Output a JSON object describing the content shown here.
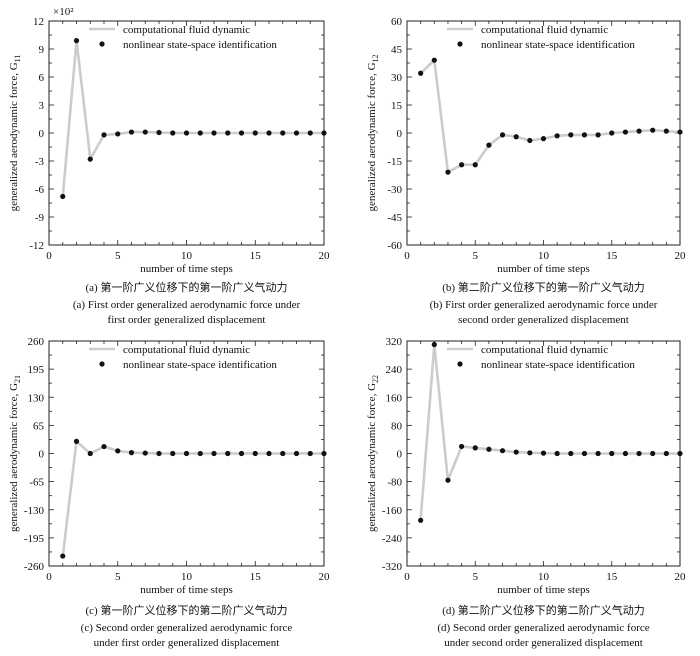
{
  "legend": {
    "cfd": "computational fluid dynamic",
    "nssi": "nonlinear state-space identification"
  },
  "colors": {
    "cfd_line": "#cccccc",
    "nssi_marker": "#111111"
  },
  "chart_data": [
    {
      "id": "G11",
      "type": "line",
      "xlabel": "number of time steps",
      "ylabel": "generalized aerodynamic force, G",
      "ylabel_sub": "11",
      "scale_note": "×10²",
      "xlim": [
        0,
        20
      ],
      "ylim": [
        -12,
        12
      ],
      "xticks": [
        0,
        5,
        10,
        15,
        20
      ],
      "yticks": [
        12,
        9,
        6,
        3,
        0,
        -3,
        -6,
        -9,
        -12
      ],
      "legend_position": "top",
      "x": [
        1,
        2,
        3,
        4,
        5,
        6,
        7,
        8,
        9,
        10,
        11,
        12,
        13,
        14,
        15,
        16,
        17,
        18,
        19,
        20
      ],
      "series": [
        {
          "name": "computational fluid dynamic",
          "style": "line",
          "values": [
            -6.8,
            9.9,
            -2.8,
            -0.2,
            -0.1,
            0.1,
            0.1,
            0.05,
            0,
            0,
            0,
            0,
            0,
            0,
            0,
            0,
            0,
            0,
            0,
            0
          ]
        },
        {
          "name": "nonlinear state-space identification",
          "style": "markers",
          "values": [
            -6.8,
            9.9,
            -2.8,
            -0.2,
            -0.1,
            0.1,
            0.1,
            0.05,
            0,
            0,
            0,
            0,
            0,
            0,
            0,
            0,
            0,
            0,
            0,
            0
          ]
        }
      ],
      "caption_cn": "(a) 第一阶广义位移下的第一阶广义气动力",
      "caption_en1": "(a) First order generalized aerodynamic force under",
      "caption_en2": "first order generalized displacement"
    },
    {
      "id": "G12",
      "type": "line",
      "xlabel": "number of time steps",
      "ylabel": "generalized aerodynamic force, G",
      "ylabel_sub": "12",
      "scale_note": "",
      "xlim": [
        0,
        20
      ],
      "ylim": [
        -60,
        60
      ],
      "xticks": [
        0,
        5,
        10,
        15,
        20
      ],
      "yticks": [
        60,
        45,
        30,
        15,
        0,
        -15,
        -30,
        -45,
        -60
      ],
      "legend_position": "top",
      "x": [
        1,
        2,
        3,
        4,
        5,
        6,
        7,
        8,
        9,
        10,
        11,
        12,
        13,
        14,
        15,
        16,
        17,
        18,
        19,
        20
      ],
      "series": [
        {
          "name": "computational fluid dynamic",
          "style": "line",
          "values": [
            32,
            39,
            -21,
            -17,
            -17,
            -6.5,
            -1,
            -2,
            -4,
            -3,
            -1.5,
            -1,
            -1,
            -1,
            0,
            0.5,
            1,
            1.5,
            1,
            0.5
          ]
        },
        {
          "name": "nonlinear state-space identification",
          "style": "markers",
          "values": [
            32,
            39,
            -21,
            -17,
            -17,
            -6.5,
            -1,
            -2,
            -4,
            -3,
            -1.5,
            -1,
            -1,
            -1,
            0,
            0.5,
            1,
            1.5,
            1,
            0.5
          ]
        }
      ],
      "caption_cn": "(b) 第二阶广义位移下的第一阶广义气动力",
      "caption_en1": "(b) First order generalized aerodynamic force under",
      "caption_en2": "second order generalized displacement"
    },
    {
      "id": "G21",
      "type": "line",
      "xlabel": "number of time steps",
      "ylabel": "generalized aerodynamic force, G",
      "ylabel_sub": "21",
      "scale_note": "",
      "xlim": [
        0,
        20
      ],
      "ylim": [
        -260,
        260
      ],
      "xticks": [
        0,
        5,
        10,
        15,
        20
      ],
      "yticks": [
        260,
        195,
        130,
        65,
        0,
        -65,
        -130,
        -195,
        -260
      ],
      "legend_position": "top",
      "x": [
        1,
        2,
        3,
        4,
        5,
        6,
        7,
        8,
        9,
        10,
        11,
        12,
        13,
        14,
        15,
        16,
        17,
        18,
        19,
        20
      ],
      "series": [
        {
          "name": "computational fluid dynamic",
          "style": "line",
          "values": [
            -237,
            28,
            0,
            16,
            6,
            2,
            1,
            0,
            0,
            0,
            0,
            0,
            0,
            0,
            0,
            0,
            0,
            0,
            0,
            0
          ]
        },
        {
          "name": "nonlinear state-space identification",
          "style": "markers",
          "values": [
            -237,
            28,
            0,
            16,
            6,
            2,
            1,
            0,
            0,
            0,
            0,
            0,
            0,
            0,
            0,
            0,
            0,
            0,
            0,
            0
          ]
        }
      ],
      "caption_cn": "(c) 第一阶广义位移下的第二阶广义气动力",
      "caption_en1": "(c) Second order generalized aerodynamic force",
      "caption_en2": "under first order generalized displacement"
    },
    {
      "id": "G22",
      "type": "line",
      "xlabel": "number of time steps",
      "ylabel": "generalized aerodynamic force, G",
      "ylabel_sub": "22",
      "scale_note": "",
      "xlim": [
        0,
        20
      ],
      "ylim": [
        -320,
        320
      ],
      "xticks": [
        0,
        5,
        10,
        15,
        20
      ],
      "yticks": [
        320,
        240,
        160,
        80,
        0,
        -80,
        -160,
        -240,
        -320
      ],
      "legend_position": "top",
      "x": [
        1,
        2,
        3,
        4,
        5,
        6,
        7,
        8,
        9,
        10,
        11,
        12,
        13,
        14,
        15,
        16,
        17,
        18,
        19,
        20
      ],
      "series": [
        {
          "name": "computational fluid dynamic",
          "style": "line",
          "values": [
            -190,
            310,
            -76,
            20,
            16,
            12,
            8,
            4,
            2,
            1,
            0,
            0,
            0,
            0,
            0,
            0,
            0,
            0,
            0,
            0
          ]
        },
        {
          "name": "nonlinear state-space identification",
          "style": "markers",
          "values": [
            -190,
            310,
            -76,
            20,
            16,
            12,
            8,
            4,
            2,
            1,
            0,
            0,
            0,
            0,
            0,
            0,
            0,
            0,
            0,
            0
          ]
        }
      ],
      "caption_cn": "(d) 第二阶广义位移下的第二阶广义气动力",
      "caption_en1": "(d) Second order generalized aerodynamic force",
      "caption_en2": "under second order generalized displacement"
    }
  ]
}
